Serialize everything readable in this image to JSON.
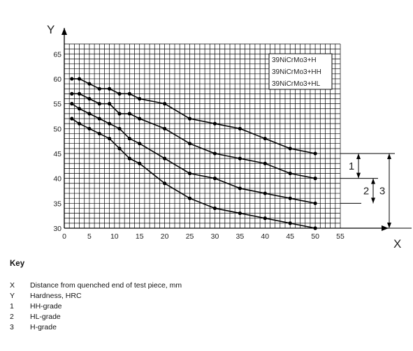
{
  "chart_data": {
    "type": "line",
    "xlabel": "X",
    "ylabel": "Y",
    "xlim": [
      0,
      55
    ],
    "ylim": [
      30,
      67
    ],
    "x_ticks": [
      "0",
      "5",
      "10",
      "15",
      "20",
      "25",
      "30",
      "35",
      "40",
      "45",
      "50",
      "55"
    ],
    "y_ticks": [
      "30",
      "35",
      "40",
      "45",
      "50",
      "55",
      "60",
      "65"
    ],
    "grid": true,
    "legend_placement": "top-right",
    "legend": [
      "39NiCrMo3+H",
      "39NiCrMo3+HH",
      "39NiCrMo3+HL"
    ],
    "series": [
      {
        "x": [
          1.5,
          3,
          5,
          7,
          9,
          11,
          13,
          15,
          20,
          25,
          30,
          35,
          40,
          45,
          50
        ],
        "y": [
          60,
          60,
          59,
          58,
          58,
          57,
          57,
          56,
          55,
          52,
          51,
          50,
          48,
          46,
          45
        ]
      },
      {
        "x": [
          1.5,
          3,
          5,
          7,
          9,
          11,
          13,
          15,
          20,
          25,
          30,
          35,
          40,
          45,
          50
        ],
        "y": [
          57,
          57,
          56,
          55,
          55,
          53,
          53,
          52,
          50,
          47,
          45,
          44,
          43,
          41,
          40
        ]
      },
      {
        "x": [
          1.5,
          3,
          5,
          7,
          9,
          11,
          13,
          15,
          20,
          25,
          30,
          35,
          40,
          45,
          50
        ],
        "y": [
          55,
          54,
          53,
          52,
          51,
          50,
          48,
          47,
          44,
          41,
          40,
          38,
          37,
          36,
          35
        ]
      },
      {
        "x": [
          1.5,
          3,
          5,
          7,
          9,
          11,
          13,
          15,
          20,
          25,
          30,
          35,
          40,
          45,
          50
        ],
        "y": [
          52,
          51,
          50,
          49,
          48,
          46,
          44,
          43,
          39,
          36,
          34,
          33,
          32,
          31,
          30
        ]
      }
    ],
    "brackets": [
      {
        "label": "1",
        "from": 45,
        "to": 40
      },
      {
        "label": "2",
        "from": 40,
        "to": 35
      },
      {
        "label": "3",
        "from": 45,
        "to": 30
      }
    ]
  },
  "key": {
    "title": "Key",
    "items": [
      {
        "symbol": "X",
        "text": "Distance from quenched end of test piece, mm"
      },
      {
        "symbol": "Y",
        "text": "Hardness, HRC"
      },
      {
        "symbol": "1",
        "text": "HH-grade"
      },
      {
        "symbol": "2",
        "text": "HL-grade"
      },
      {
        "symbol": "3",
        "text": "H-grade"
      }
    ]
  }
}
